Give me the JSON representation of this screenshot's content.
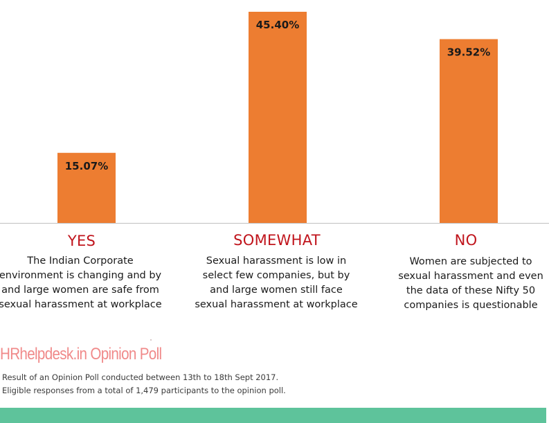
{
  "chart_data": {
    "type": "bar",
    "categories": [
      "YES",
      "SOMEWHAT",
      "NO"
    ],
    "values": [
      15.07,
      45.4,
      39.52
    ],
    "value_labels": [
      "15.07%",
      "45.40%",
      "39.52%"
    ],
    "descriptions": [
      "The Indian Corporate environment is changing and by and large women are safe from sexual harassment at workplace",
      "Sexual harassment is low in select few companies, but by and large women still face sexual harassment at workplace",
      "Women are subjected to sexual harassment and even the data of these Nifty 50 companies is questionable"
    ],
    "ylim": [
      0,
      45.4
    ],
    "grid": false,
    "legend": "none"
  },
  "brand": {
    "text": "HRhelpdesk.in Opinion Poll"
  },
  "notes": {
    "line1": "Result of an Opinion Poll conducted between 13th to 18th Sept 2017.",
    "line2": "Eligible responses from a total of 1,479 participants to the opinion poll."
  },
  "colors": {
    "bar": "#ed7d31",
    "axis": "#bfbfbf",
    "category_label": "#c0141c",
    "brand": "#f08a8a",
    "footer": "#5ec39b"
  }
}
